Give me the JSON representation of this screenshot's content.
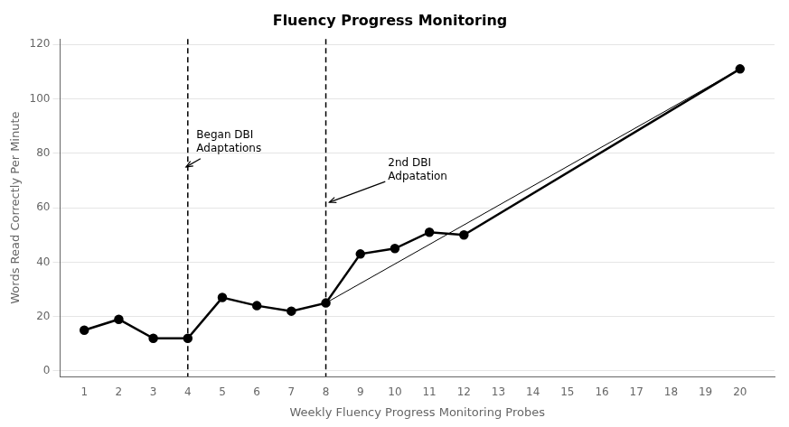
{
  "chart_data": {
    "type": "line",
    "title": "Fluency Progress Monitoring",
    "xlabel": "Weekly Fluency Progress Monitoring Probes",
    "ylabel": "Words Read Correctly Per Minute",
    "xlim": [
      0.3,
      21
    ],
    "ylim": [
      -2,
      122
    ],
    "xticks": [
      1,
      2,
      3,
      4,
      5,
      6,
      7,
      8,
      9,
      10,
      11,
      12,
      13,
      14,
      15,
      16,
      17,
      18,
      19,
      20
    ],
    "yticks": [
      0,
      20,
      40,
      60,
      80,
      100,
      120
    ],
    "grid": "y",
    "series": [
      {
        "x": [
          8,
          20
        ],
        "values": [
          25,
          111
        ],
        "color": "black",
        "marker": "none",
        "line_style": "solid"
      },
      {
        "x": [
          1,
          2,
          3,
          4,
          5,
          6,
          7,
          8,
          9,
          10,
          11,
          12,
          20
        ],
        "values": [
          15,
          19,
          12,
          12,
          27,
          24,
          22,
          25,
          43,
          45,
          51,
          50,
          111
        ],
        "color": "black",
        "marker": "circle",
        "line_style": "solid"
      }
    ],
    "vlines": [
      {
        "x": 4,
        "color": "black",
        "line_style": "dashed"
      },
      {
        "x": 8,
        "color": "black",
        "line_style": "dashed"
      }
    ],
    "annotations": [
      {
        "text": "Began DBI\nAdaptations",
        "x": 4.25,
        "y": 84,
        "arrow_x": 3.95,
        "arrow_y": 75
      },
      {
        "text": "2nd DBI\nAdpatation",
        "x": 9.8,
        "y": 74,
        "arrow_x": 8.1,
        "arrow_y": 62
      }
    ]
  }
}
